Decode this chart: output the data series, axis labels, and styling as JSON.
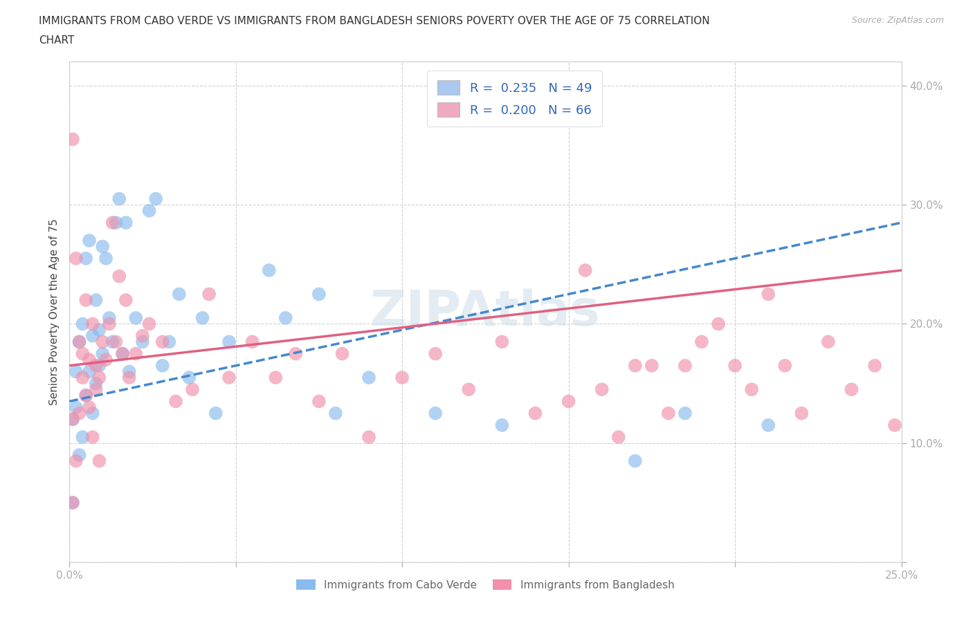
{
  "title_line1": "IMMIGRANTS FROM CABO VERDE VS IMMIGRANTS FROM BANGLADESH SENIORS POVERTY OVER THE AGE OF 75 CORRELATION",
  "title_line2": "CHART",
  "source": "Source: ZipAtlas.com",
  "ylabel": "Seniors Poverty Over the Age of 75",
  "xlim": [
    0.0,
    0.25
  ],
  "ylim": [
    0.0,
    0.42
  ],
  "xticks": [
    0.0,
    0.05,
    0.1,
    0.15,
    0.2,
    0.25
  ],
  "yticks": [
    0.0,
    0.1,
    0.2,
    0.3,
    0.4
  ],
  "legend1_label": "R =  0.235   N = 49",
  "legend2_label": "R =  0.200   N = 66",
  "legend1_color": "#aac8f0",
  "legend2_color": "#f0aabf",
  "cabo_verde_color": "#88bbee",
  "bangladesh_color": "#f090aa",
  "trend_cabo_color": "#4488cc",
  "trend_bang_color": "#e06080",
  "watermark": "ZIPAtlas",
  "cabo_trend_x": [
    0.0,
    0.25
  ],
  "cabo_trend_y": [
    0.135,
    0.285
  ],
  "bang_trend_x": [
    0.0,
    0.25
  ],
  "bang_trend_y": [
    0.165,
    0.245
  ],
  "legend_bottom_label1": "Immigrants from Cabo Verde",
  "legend_bottom_label2": "Immigrants from Bangladesh",
  "cabo_verde_x": [
    0.001,
    0.001,
    0.002,
    0.002,
    0.003,
    0.003,
    0.004,
    0.004,
    0.005,
    0.005,
    0.006,
    0.006,
    0.007,
    0.007,
    0.008,
    0.008,
    0.009,
    0.009,
    0.01,
    0.01,
    0.011,
    0.012,
    0.013,
    0.014,
    0.015,
    0.016,
    0.017,
    0.018,
    0.02,
    0.022,
    0.024,
    0.026,
    0.028,
    0.03,
    0.033,
    0.036,
    0.04,
    0.044,
    0.048,
    0.06,
    0.065,
    0.075,
    0.08,
    0.09,
    0.11,
    0.13,
    0.17,
    0.185,
    0.21
  ],
  "cabo_verde_y": [
    0.05,
    0.12,
    0.13,
    0.16,
    0.09,
    0.185,
    0.105,
    0.2,
    0.14,
    0.255,
    0.16,
    0.27,
    0.125,
    0.19,
    0.15,
    0.22,
    0.165,
    0.195,
    0.265,
    0.175,
    0.255,
    0.205,
    0.185,
    0.285,
    0.305,
    0.175,
    0.285,
    0.16,
    0.205,
    0.185,
    0.295,
    0.305,
    0.165,
    0.185,
    0.225,
    0.155,
    0.205,
    0.125,
    0.185,
    0.245,
    0.205,
    0.225,
    0.125,
    0.155,
    0.125,
    0.115,
    0.085,
    0.125,
    0.115
  ],
  "bangladesh_x": [
    0.001,
    0.001,
    0.001,
    0.002,
    0.002,
    0.003,
    0.003,
    0.004,
    0.004,
    0.005,
    0.005,
    0.006,
    0.006,
    0.007,
    0.007,
    0.008,
    0.008,
    0.009,
    0.009,
    0.01,
    0.011,
    0.012,
    0.013,
    0.014,
    0.015,
    0.016,
    0.017,
    0.018,
    0.02,
    0.022,
    0.024,
    0.028,
    0.032,
    0.037,
    0.042,
    0.048,
    0.055,
    0.062,
    0.068,
    0.075,
    0.082,
    0.09,
    0.1,
    0.11,
    0.12,
    0.13,
    0.14,
    0.15,
    0.155,
    0.16,
    0.165,
    0.17,
    0.175,
    0.18,
    0.185,
    0.19,
    0.195,
    0.2,
    0.205,
    0.21,
    0.215,
    0.22,
    0.228,
    0.235,
    0.242,
    0.248
  ],
  "bangladesh_y": [
    0.05,
    0.12,
    0.355,
    0.085,
    0.255,
    0.125,
    0.185,
    0.155,
    0.175,
    0.14,
    0.22,
    0.13,
    0.17,
    0.105,
    0.2,
    0.145,
    0.165,
    0.085,
    0.155,
    0.185,
    0.17,
    0.2,
    0.285,
    0.185,
    0.24,
    0.175,
    0.22,
    0.155,
    0.175,
    0.19,
    0.2,
    0.185,
    0.135,
    0.145,
    0.225,
    0.155,
    0.185,
    0.155,
    0.175,
    0.135,
    0.175,
    0.105,
    0.155,
    0.175,
    0.145,
    0.185,
    0.125,
    0.135,
    0.245,
    0.145,
    0.105,
    0.165,
    0.165,
    0.125,
    0.165,
    0.185,
    0.2,
    0.165,
    0.145,
    0.225,
    0.165,
    0.125,
    0.185,
    0.145,
    0.165,
    0.115
  ]
}
